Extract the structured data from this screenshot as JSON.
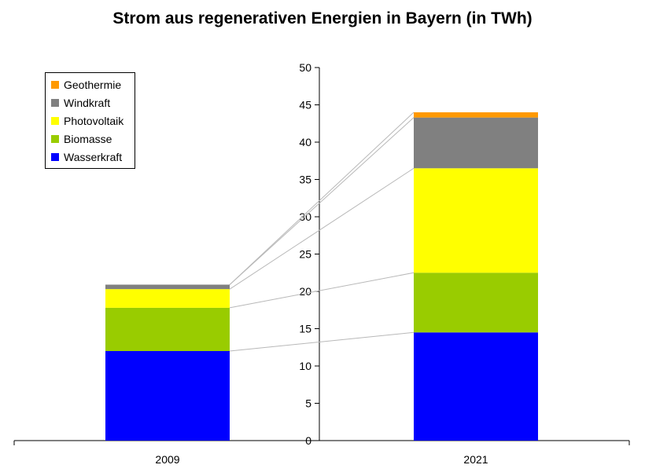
{
  "chart_data": {
    "type": "bar",
    "title": "Strom aus regenerativen Energien in Bayern (in TWh)",
    "categories": [
      "2009",
      "2021"
    ],
    "ylim": [
      0,
      50
    ],
    "yticks": [
      0,
      5,
      10,
      15,
      20,
      25,
      30,
      35,
      40,
      45,
      50
    ],
    "stacked": true,
    "grid": false,
    "legend_position": "top-left",
    "series": [
      {
        "name": "Wasserkraft",
        "color": "#0000ff",
        "values": [
          12.0,
          14.5
        ]
      },
      {
        "name": "Biomasse",
        "color": "#99cc00",
        "values": [
          5.8,
          8.0
        ]
      },
      {
        "name": "Photovoltaik",
        "color": "#ffff00",
        "values": [
          2.5,
          14.0
        ]
      },
      {
        "name": "Windkraft",
        "color": "#808080",
        "values": [
          0.6,
          6.8
        ]
      },
      {
        "name": "Geothermie",
        "color": "#ff9900",
        "values": [
          0.0,
          0.7
        ]
      }
    ]
  }
}
